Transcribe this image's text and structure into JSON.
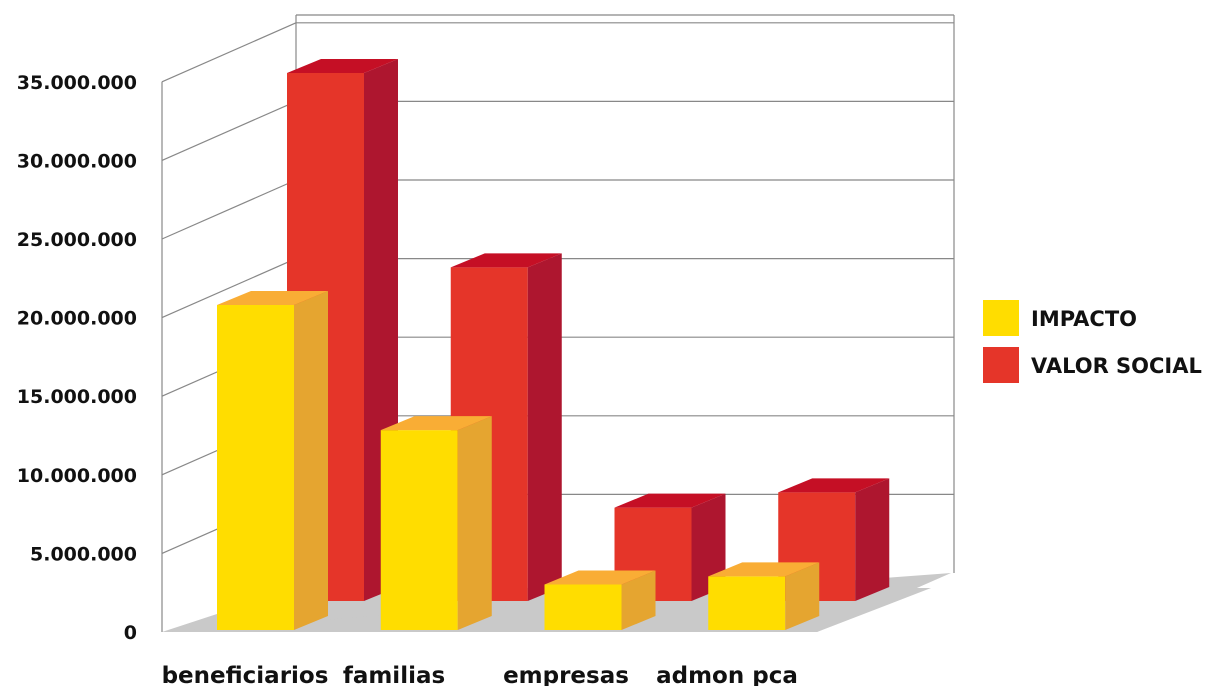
{
  "chart_data": {
    "type": "bar",
    "categories": [
      "beneficiarios",
      "familias",
      "empresas",
      "admon pca"
    ],
    "series": [
      {
        "name": "IMPACTO",
        "values": [
          20000000,
          12300000,
          2800000,
          3300000
        ]
      },
      {
        "name": "VALOR SOCIAL",
        "values": [
          34500000,
          21800000,
          6100000,
          7100000
        ]
      }
    ],
    "ylim": [
      0,
      35000000
    ],
    "yticks": [
      0,
      5000000,
      10000000,
      15000000,
      20000000,
      25000000,
      30000000,
      35000000
    ],
    "ytick_labels": [
      "0",
      "5.000.000",
      "10.000.000",
      "15.000.000",
      "20.000.000",
      "25.000.000",
      "30.000.000",
      "35.000.000"
    ],
    "grid": true,
    "legend_position": "right",
    "style": "3d"
  },
  "colors": {
    "impacto_front": "#FFDD00",
    "impacto_side": "#E5A530",
    "impacto_top": "#F9AD35",
    "valor_front": "#E53529",
    "valor_side": "#AE162F",
    "valor_top": "#C50F25",
    "floor": "#C9C9C9",
    "grid": "#888888"
  }
}
